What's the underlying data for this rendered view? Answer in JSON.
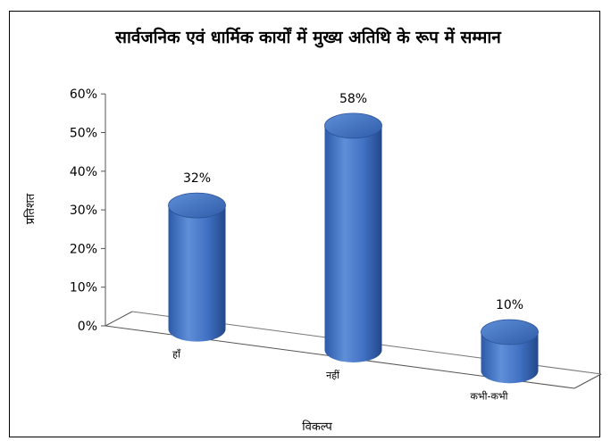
{
  "chart_data": {
    "type": "bar",
    "title": "सार्वजनिक एवं धार्मिक कार्यों में मुख्य अतिथि के रूप में सम्मान",
    "xlabel": "विकल्प",
    "ylabel": "प्रतिशत",
    "categories": [
      "हाँ",
      "नहीं",
      "कभी-कभी"
    ],
    "values": [
      32,
      58,
      10
    ],
    "data_labels": [
      "32%",
      "58%",
      "10%"
    ],
    "yticks": [
      "0%",
      "10%",
      "20%",
      "30%",
      "40%",
      "50%",
      "60%"
    ],
    "ylim": [
      0,
      60
    ],
    "bar_shape": "3d-cylinder",
    "bar_color": "#4a78c4",
    "grid": false,
    "legend": "none"
  }
}
